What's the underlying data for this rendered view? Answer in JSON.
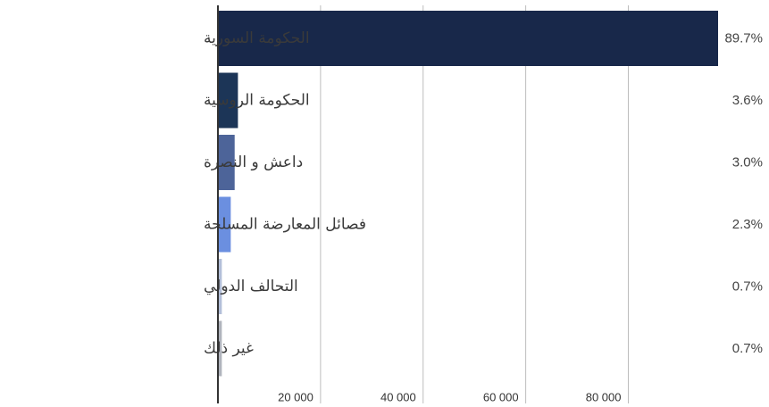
{
  "chart_data": {
    "type": "bar",
    "orientation": "horizontal",
    "categories": [
      "الحكومة السورية",
      "الحكومة الروسية",
      "داعش و النصرة",
      "فصائل المعارضة المسلحة",
      "التحالف الدولي",
      "غير ذلك"
    ],
    "values": [
      97500,
      3900,
      3260,
      2500,
      760,
      760
    ],
    "percent_labels": [
      "89.7%",
      "3.6%",
      "3.0%",
      "2.3%",
      "0.7%",
      "0.7%"
    ],
    "colors": [
      "#18284a",
      "#1c3557",
      "#4d6499",
      "#6b8fe0",
      "#b3bfd9",
      "#b0b4bd"
    ],
    "xlim": [
      0,
      97500
    ],
    "xticks": [
      20000,
      40000,
      60000,
      80000
    ],
    "xtick_labels": [
      "20 000",
      "40 000",
      "60 000",
      "80 000"
    ],
    "grid": "vertical",
    "legend": "none"
  }
}
